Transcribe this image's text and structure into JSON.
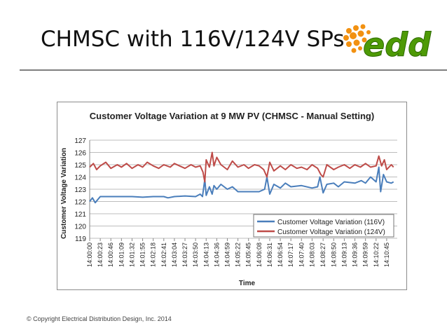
{
  "slide": {
    "title": "CHMSC with 116V/124V SPs",
    "logo_text": "edd",
    "footer": "© Copyright Electrical Distribution Design, Inc. 2014"
  },
  "colors": {
    "series_116": "#4a7ebb",
    "series_124": "#be4b48",
    "logo_green": "#4e9a06",
    "logo_orange": "#f29111"
  },
  "chart_data": {
    "type": "line",
    "title": "Customer Voltage Variation at 9 MW PV (CHMSC - Manual Setting)",
    "xlabel": "Time",
    "ylabel": "Customer Voltage Variation",
    "ylim": [
      119,
      127
    ],
    "yticks": [
      119,
      120,
      121,
      122,
      123,
      124,
      125,
      126,
      127
    ],
    "grid": true,
    "legend_position": "bottom-right",
    "x_ticks": [
      "14:00:00",
      "14:00:23",
      "14:00:46",
      "14:01:09",
      "14:01:32",
      "14:01:55",
      "14:02:18",
      "14:02:41",
      "14:03:04",
      "14:03:27",
      "14:03:50",
      "14:04:13",
      "14:04:36",
      "14:04:59",
      "14:05:22",
      "14:05:45",
      "14:06:08",
      "14:06:31",
      "14:06:54",
      "14:07:17",
      "14:07:40",
      "14:08:03",
      "14:08:27",
      "14:08:50",
      "14:09:13",
      "14:09:36",
      "14:09:59",
      "14:10:22",
      "14:10:45"
    ],
    "series": [
      {
        "name": "Customer Voltage Variation (116V)",
        "color": "#4a7ebb",
        "x": [
          "14:00:00",
          "14:00:06",
          "14:00:12",
          "14:00:23",
          "14:00:46",
          "14:01:09",
          "14:01:32",
          "14:01:55",
          "14:02:18",
          "14:02:41",
          "14:02:50",
          "14:03:04",
          "14:03:27",
          "14:03:50",
          "14:04:00",
          "14:04:05",
          "14:04:10",
          "14:04:13",
          "14:04:20",
          "14:04:26",
          "14:04:30",
          "14:04:36",
          "14:04:45",
          "14:04:59",
          "14:05:10",
          "14:05:22",
          "14:05:45",
          "14:06:08",
          "14:06:20",
          "14:06:25",
          "14:06:31",
          "14:06:40",
          "14:06:54",
          "14:07:05",
          "14:07:17",
          "14:07:40",
          "14:08:03",
          "14:08:15",
          "14:08:20",
          "14:08:27",
          "14:08:35",
          "14:08:50",
          "14:09:00",
          "14:09:13",
          "14:09:36",
          "14:09:50",
          "14:09:59",
          "14:10:10",
          "14:10:22",
          "14:10:28",
          "14:10:32",
          "14:10:38",
          "14:10:45",
          "14:10:55",
          "14:11:00"
        ],
        "values": [
          122.0,
          122.3,
          121.9,
          122.4,
          122.4,
          122.4,
          122.4,
          122.35,
          122.4,
          122.4,
          122.3,
          122.4,
          122.45,
          122.4,
          122.6,
          122.4,
          123.8,
          122.5,
          123.2,
          122.6,
          123.3,
          123.0,
          123.4,
          123.0,
          123.2,
          122.8,
          122.8,
          122.8,
          123.0,
          124.0,
          122.6,
          123.4,
          123.1,
          123.5,
          123.2,
          123.3,
          123.1,
          123.2,
          124.0,
          122.7,
          123.4,
          123.5,
          123.2,
          123.6,
          123.5,
          123.7,
          123.5,
          124.0,
          123.6,
          124.8,
          122.8,
          124.2,
          123.6,
          123.5,
          123.6
        ]
      },
      {
        "name": "Customer Voltage Variation (124V)",
        "color": "#be4b48",
        "x": [
          "14:00:00",
          "14:00:08",
          "14:00:15",
          "14:00:23",
          "14:00:35",
          "14:00:46",
          "14:01:00",
          "14:01:09",
          "14:01:20",
          "14:01:32",
          "14:01:45",
          "14:01:55",
          "14:02:05",
          "14:02:18",
          "14:02:30",
          "14:02:41",
          "14:02:55",
          "14:03:04",
          "14:03:15",
          "14:03:27",
          "14:03:40",
          "14:03:50",
          "14:04:00",
          "14:04:06",
          "14:04:10",
          "14:04:13",
          "14:04:20",
          "14:04:26",
          "14:04:30",
          "14:04:36",
          "14:04:45",
          "14:04:59",
          "14:05:10",
          "14:05:22",
          "14:05:35",
          "14:05:45",
          "14:05:58",
          "14:06:08",
          "14:06:18",
          "14:06:25",
          "14:06:31",
          "14:06:40",
          "14:06:54",
          "14:07:05",
          "14:07:17",
          "14:07:30",
          "14:07:40",
          "14:07:52",
          "14:08:03",
          "14:08:15",
          "14:08:22",
          "14:08:27",
          "14:08:35",
          "14:08:50",
          "14:09:00",
          "14:09:13",
          "14:09:25",
          "14:09:36",
          "14:09:48",
          "14:09:59",
          "14:10:10",
          "14:10:22",
          "14:10:28",
          "14:10:34",
          "14:10:40",
          "14:10:45",
          "14:10:55",
          "14:11:00"
        ],
        "values": [
          124.8,
          125.1,
          124.6,
          124.9,
          125.2,
          124.7,
          125.0,
          124.8,
          125.1,
          124.7,
          125.0,
          124.8,
          125.2,
          124.9,
          124.7,
          125.0,
          124.8,
          125.1,
          124.9,
          124.7,
          125.0,
          124.8,
          124.9,
          124.4,
          123.6,
          125.4,
          124.8,
          126.0,
          124.9,
          125.6,
          125.0,
          124.6,
          125.3,
          124.8,
          125.0,
          124.7,
          125.0,
          124.9,
          124.6,
          124.0,
          125.2,
          124.5,
          124.9,
          124.6,
          125.0,
          124.7,
          124.8,
          124.6,
          125.0,
          124.7,
          124.2,
          124.0,
          125.0,
          124.6,
          124.8,
          125.0,
          124.7,
          125.0,
          124.8,
          125.1,
          124.8,
          124.9,
          125.7,
          124.9,
          125.4,
          124.6,
          125.0,
          124.8
        ]
      }
    ]
  }
}
